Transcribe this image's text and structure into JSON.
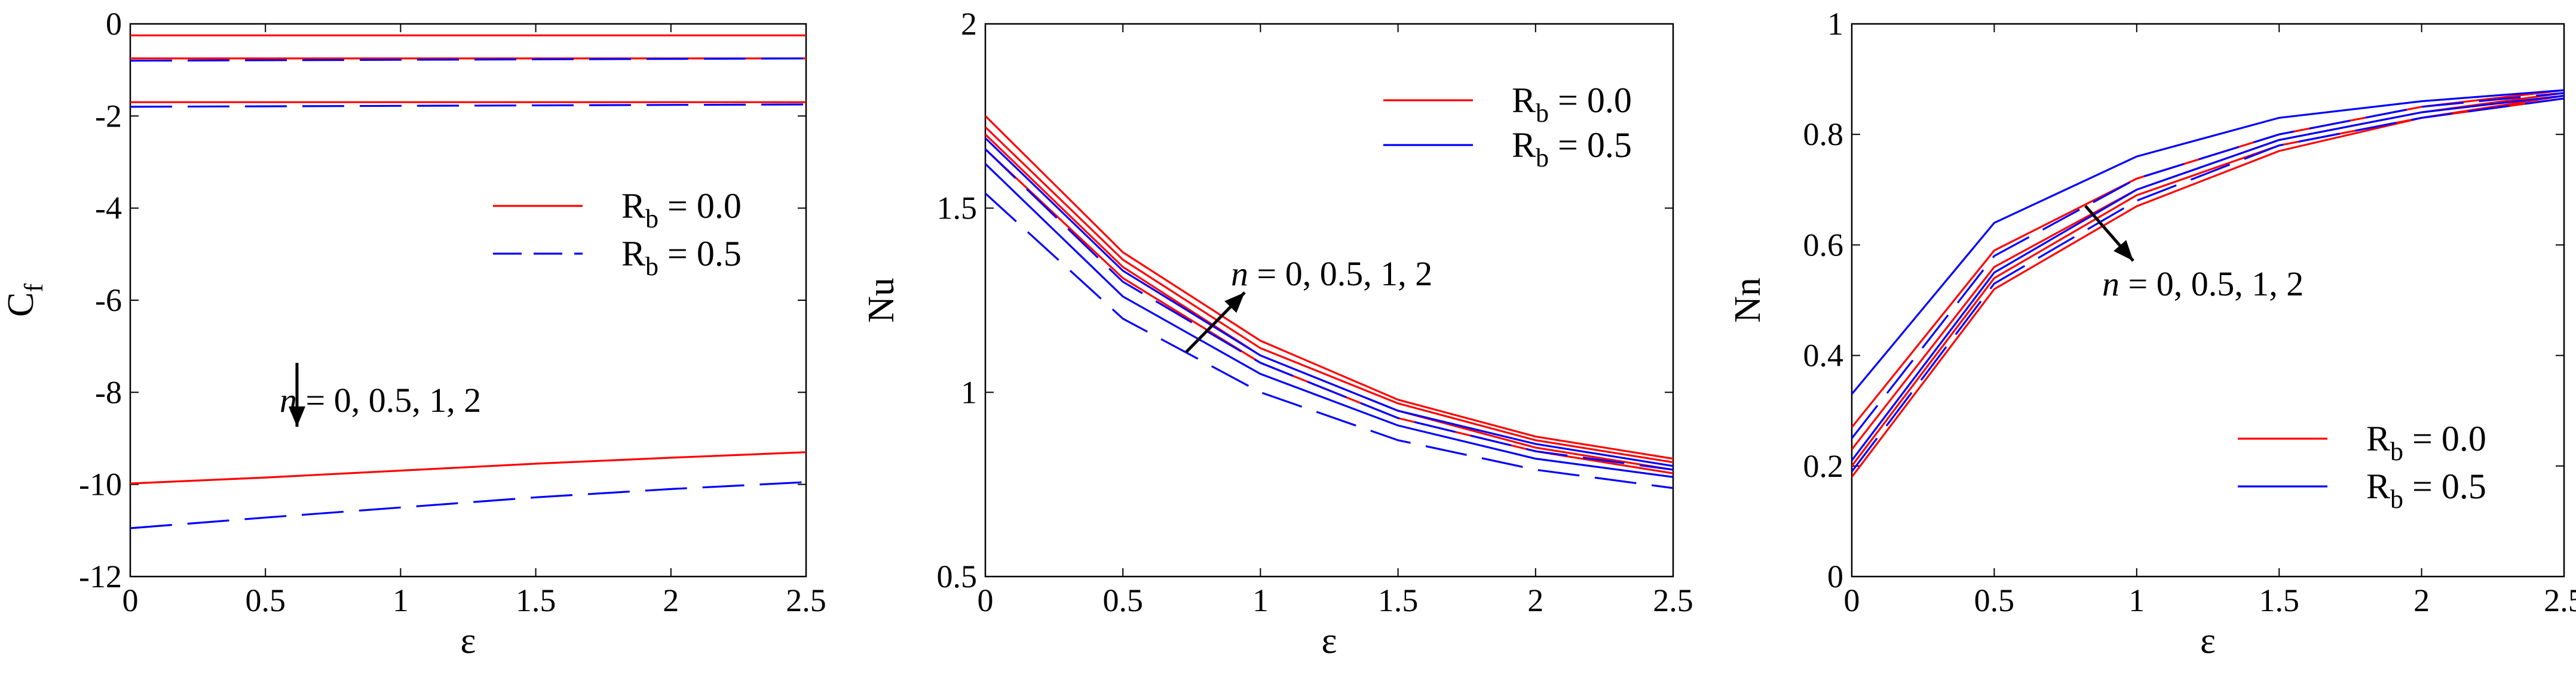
{
  "colors": {
    "red": "#ff0000",
    "blue": "#0000ff",
    "black": "#000000"
  },
  "chart_data": [
    {
      "type": "line",
      "ylabel_main": "C",
      "ylabel_sub": "f",
      "xlabel": "ε",
      "xlim": [
        0,
        2.5
      ],
      "ylim": [
        -12,
        0
      ],
      "xticks": [
        "0",
        "0.5",
        "1",
        "1.5",
        "2",
        "2.5"
      ],
      "yticks": [
        "-12",
        "-10",
        "-8",
        "-6",
        "-4",
        "-2",
        "0"
      ],
      "legend": [
        {
          "main": "R",
          "sub": "b",
          "rest": " = 0.0",
          "color": "#ff0000",
          "dash": "solid"
        },
        {
          "main": "R",
          "sub": "b",
          "rest": " = 0.5",
          "color": "#0000ff",
          "dash": "dashed"
        }
      ],
      "annotation": {
        "italic": "n",
        "rest": " = 0, 0.5, 1, 2"
      },
      "series": [
        {
          "group": "Rb = 0.0",
          "x": [
            0,
            2.5
          ],
          "y": [
            -0.25,
            -0.25
          ]
        },
        {
          "group": "Rb = 0.0",
          "x": [
            0,
            2.5
          ],
          "y": [
            -0.75,
            -0.75
          ]
        },
        {
          "group": "Rb = 0.0",
          "x": [
            0,
            2.5
          ],
          "y": [
            -1.7,
            -1.7
          ]
        },
        {
          "group": "Rb = 0.0",
          "x": [
            0,
            0.5,
            1,
            1.5,
            2,
            2.5
          ],
          "y": [
            -9.98,
            -9.85,
            -9.7,
            -9.55,
            -9.42,
            -9.3
          ]
        },
        {
          "group": "Rb = 0.5",
          "x": [
            0,
            2.5
          ],
          "y": [
            -0.8,
            -0.75
          ]
        },
        {
          "group": "Rb = 0.5",
          "x": [
            0,
            2.5
          ],
          "y": [
            -1.8,
            -1.75
          ]
        },
        {
          "group": "Rb = 0.5",
          "x": [
            0,
            0.5,
            1,
            1.5,
            2,
            2.5
          ],
          "y": [
            -10.95,
            -10.72,
            -10.5,
            -10.28,
            -10.1,
            -9.95
          ]
        }
      ]
    },
    {
      "type": "line",
      "ylabel": "Nu",
      "xlabel": "ε",
      "xlim": [
        0,
        2.5
      ],
      "ylim": [
        0.5,
        2
      ],
      "xticks": [
        "0",
        "0.5",
        "1",
        "1.5",
        "2",
        "2.5"
      ],
      "yticks": [
        "0.5",
        "1",
        "1.5",
        "2"
      ],
      "legend": [
        {
          "main": "R",
          "sub": "b",
          "rest": " = 0.0",
          "color": "#ff0000",
          "dash": "solid"
        },
        {
          "main": "R",
          "sub": "b",
          "rest": " = 0.5",
          "color": "#0000ff",
          "dash": "solid"
        }
      ],
      "annotation": {
        "italic": "n",
        "rest": " = 0, 0.5, 1, 2"
      },
      "series": [
        {
          "group": "Rb = 0.0",
          "x": [
            0,
            0.5,
            1,
            1.5,
            2,
            2.5
          ],
          "y": [
            1.75,
            1.38,
            1.14,
            0.98,
            0.88,
            0.82
          ]
        },
        {
          "group": "Rb = 0.0",
          "x": [
            0,
            0.5,
            1,
            1.5,
            2,
            2.5
          ],
          "y": [
            1.72,
            1.36,
            1.12,
            0.97,
            0.87,
            0.81
          ]
        },
        {
          "group": "Rb = 0.0",
          "x": [
            0,
            0.5,
            1,
            1.5,
            2,
            2.5
          ],
          "y": [
            1.7,
            1.34,
            1.1,
            0.95,
            0.85,
            0.79
          ]
        },
        {
          "group": "Rb = 0.0",
          "x": [
            0,
            0.5,
            1,
            1.5,
            2,
            2.5
          ],
          "y": [
            1.66,
            1.31,
            1.08,
            0.93,
            0.84,
            0.78
          ]
        },
        {
          "group": "Rb = 0.5",
          "x": [
            0,
            0.5,
            1,
            1.5,
            2,
            2.5
          ],
          "y": [
            1.69,
            1.33,
            1.1,
            0.95,
            0.86,
            0.8
          ]
        },
        {
          "group": "Rb = 0.5",
          "x": [
            0,
            0.5,
            1,
            1.5,
            2,
            2.5
          ],
          "y": [
            1.66,
            1.3,
            1.08,
            0.93,
            0.84,
            0.79
          ]
        },
        {
          "group": "Rb = 0.5",
          "x": [
            0,
            0.5,
            1,
            1.5,
            2,
            2.5
          ],
          "y": [
            1.62,
            1.26,
            1.05,
            0.91,
            0.82,
            0.77
          ]
        },
        {
          "group": "Rb = 0.5",
          "x": [
            0,
            0.5,
            1,
            1.5,
            2,
            2.5
          ],
          "y": [
            1.54,
            1.2,
            1.0,
            0.87,
            0.79,
            0.74
          ]
        }
      ]
    },
    {
      "type": "line",
      "ylabel": "Nn",
      "xlabel": "ε",
      "xlim": [
        0,
        2.5
      ],
      "ylim": [
        0,
        1
      ],
      "xticks": [
        "0",
        "0.5",
        "1",
        "1.5",
        "2",
        "2.5"
      ],
      "yticks": [
        "0",
        "0.2",
        "0.4",
        "0.6",
        "0.8",
        "1"
      ],
      "legend": [
        {
          "main": "R",
          "sub": "b",
          "rest": " = 0.0",
          "color": "#ff0000",
          "dash": "solid"
        },
        {
          "main": "R",
          "sub": "b",
          "rest": " = 0.5",
          "color": "#0000ff",
          "dash": "solid"
        }
      ],
      "annotation": {
        "italic": "n",
        "rest": " = 0, 0.5, 1, 2"
      },
      "series": [
        {
          "group": "Rb = 0.0",
          "x": [
            0,
            0.5,
            1,
            1.5,
            2,
            2.5
          ],
          "y": [
            0.27,
            0.59,
            0.72,
            0.8,
            0.85,
            0.88
          ]
        },
        {
          "group": "Rb = 0.0",
          "x": [
            0,
            0.5,
            1,
            1.5,
            2,
            2.5
          ],
          "y": [
            0.23,
            0.56,
            0.7,
            0.79,
            0.84,
            0.875
          ]
        },
        {
          "group": "Rb = 0.0",
          "x": [
            0,
            0.5,
            1,
            1.5,
            2,
            2.5
          ],
          "y": [
            0.2,
            0.54,
            0.69,
            0.78,
            0.83,
            0.87
          ]
        },
        {
          "group": "Rb = 0.0",
          "x": [
            0,
            0.5,
            1,
            1.5,
            2,
            2.5
          ],
          "y": [
            0.18,
            0.52,
            0.67,
            0.77,
            0.83,
            0.865
          ]
        },
        {
          "group": "Rb = 0.5",
          "x": [
            0,
            0.5,
            1,
            1.5,
            2,
            2.5
          ],
          "y": [
            0.33,
            0.64,
            0.76,
            0.83,
            0.86,
            0.88
          ]
        },
        {
          "group": "Rb = 0.5",
          "x": [
            0,
            0.5,
            1,
            1.5,
            2,
            2.5
          ],
          "y": [
            0.25,
            0.58,
            0.72,
            0.8,
            0.85,
            0.875
          ]
        },
        {
          "group": "Rb = 0.5",
          "x": [
            0,
            0.5,
            1,
            1.5,
            2,
            2.5
          ],
          "y": [
            0.21,
            0.55,
            0.7,
            0.79,
            0.84,
            0.87
          ]
        },
        {
          "group": "Rb = 0.5",
          "x": [
            0,
            0.5,
            1,
            1.5,
            2,
            2.5
          ],
          "y": [
            0.19,
            0.53,
            0.68,
            0.78,
            0.83,
            0.865
          ]
        }
      ]
    }
  ]
}
